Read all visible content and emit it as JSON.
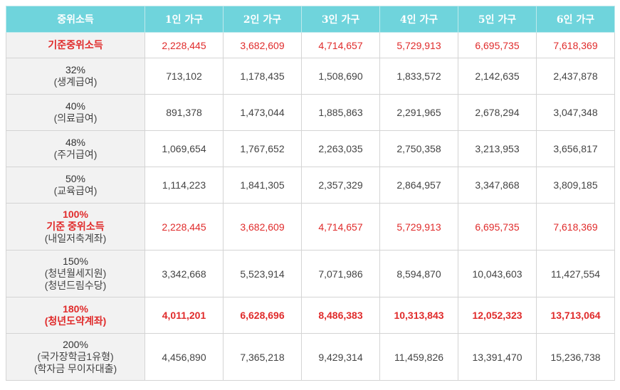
{
  "table": {
    "headers": [
      "중위소득",
      "1인 가구",
      "2인 가구",
      "3인 가구",
      "4인 가구",
      "5인 가구",
      "6인 가구"
    ],
    "rows": [
      {
        "label_lines": [
          "기준중위소득"
        ],
        "values": [
          "2,228,445",
          "3,682,609",
          "4,714,657",
          "5,729,913",
          "6,695,735",
          "7,618,369"
        ]
      },
      {
        "label_lines": [
          "32%",
          "(생계급여)"
        ],
        "values": [
          "713,102",
          "1,178,435",
          "1,508,690",
          "1,833,572",
          "2,142,635",
          "2,437,878"
        ]
      },
      {
        "label_lines": [
          "40%",
          "(의료급여)"
        ],
        "values": [
          "891,378",
          "1,473,044",
          "1,885,863",
          "2,291,965",
          "2,678,294",
          "3,047,348"
        ]
      },
      {
        "label_lines": [
          "48%",
          "(주거급여)"
        ],
        "values": [
          "1,069,654",
          "1,767,652",
          "2,263,035",
          "2,750,358",
          "3,213,953",
          "3,656,817"
        ]
      },
      {
        "label_lines": [
          "50%",
          "(교육급여)"
        ],
        "values": [
          "1,114,223",
          "1,841,305",
          "2,357,329",
          "2,864,957",
          "3,347,868",
          "3,809,185"
        ]
      },
      {
        "label_lines": [
          "100%",
          "기준 중위소득",
          "(내일저축계좌)"
        ],
        "values": [
          "2,228,445",
          "3,682,609",
          "4,714,657",
          "5,729,913",
          "6,695,735",
          "7,618,369"
        ]
      },
      {
        "label_lines": [
          "150%",
          "(청년월세지원)",
          "(청년드림수당)"
        ],
        "values": [
          "3,342,668",
          "5,523,914",
          "7,071,986",
          "8,594,870",
          "10,043,603",
          "11,427,554"
        ]
      },
      {
        "label_lines": [
          "180%",
          "(청년도약계좌)"
        ],
        "values": [
          "4,011,201",
          "6,628,696",
          "8,486,383",
          "10,313,843",
          "12,052,323",
          "13,713,064"
        ]
      },
      {
        "label_lines": [
          "200%",
          "(국가장학금1유형)",
          "(학자금 무이자대출)"
        ],
        "values": [
          "4,456,890",
          "7,365,218",
          "9,429,314",
          "11,459,826",
          "13,391,470",
          "15,236,738"
        ]
      }
    ]
  },
  "colors": {
    "header_bg": "#6fd4dc",
    "highlight_red": "#e02b2b",
    "label_bg": "#f2f2f2"
  }
}
